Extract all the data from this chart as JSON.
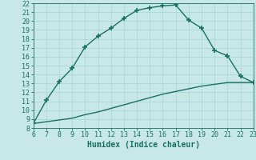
{
  "xlabel": "Humidex (Indice chaleur)",
  "ylabel": "",
  "background_color": "#c8e8e8",
  "line_color": "#1a7060",
  "grid_color": "#a8d8d8",
  "xlim": [
    6,
    23
  ],
  "ylim": [
    8,
    22
  ],
  "xticks": [
    6,
    7,
    8,
    9,
    10,
    11,
    12,
    13,
    14,
    15,
    16,
    17,
    18,
    19,
    20,
    21,
    22,
    23
  ],
  "yticks": [
    8,
    9,
    10,
    11,
    12,
    13,
    14,
    15,
    16,
    17,
    18,
    19,
    20,
    21,
    22
  ],
  "upper_x": [
    6,
    7,
    8,
    9,
    10,
    11,
    12,
    13,
    14,
    15,
    16,
    17,
    18,
    19,
    20,
    21,
    22,
    23
  ],
  "upper_y": [
    8.5,
    11.1,
    13.2,
    14.7,
    17.1,
    18.3,
    19.2,
    20.3,
    21.2,
    21.5,
    21.7,
    21.8,
    20.1,
    19.2,
    16.7,
    16.1,
    13.8,
    13.1
  ],
  "lower_x": [
    6,
    7,
    8,
    9,
    10,
    11,
    12,
    13,
    14,
    15,
    16,
    17,
    18,
    19,
    20,
    21,
    22,
    23
  ],
  "lower_y": [
    8.5,
    8.7,
    8.9,
    9.1,
    9.5,
    9.8,
    10.2,
    10.6,
    11.0,
    11.4,
    11.8,
    12.1,
    12.4,
    12.7,
    12.9,
    13.1,
    13.1,
    13.1
  ],
  "font_size": 7,
  "marker": "+",
  "marker_size": 4,
  "linewidth": 1.0
}
